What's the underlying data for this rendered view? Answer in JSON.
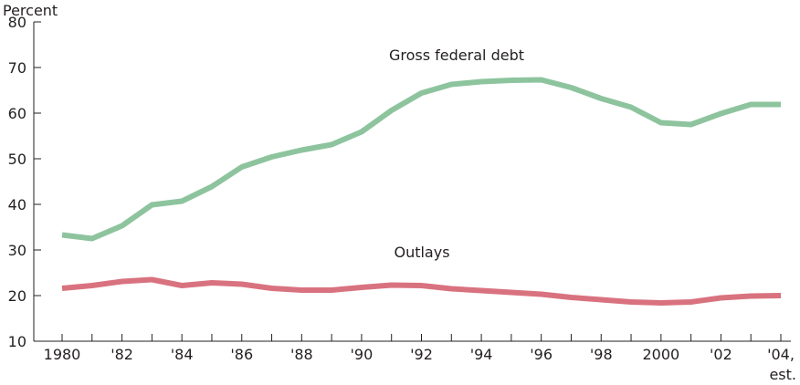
{
  "chart_data": {
    "type": "line",
    "ylabel": "Percent",
    "ylim": [
      10,
      80
    ],
    "yticks": [
      10,
      20,
      30,
      40,
      50,
      60,
      70,
      80
    ],
    "xlim": [
      1980,
      2004
    ],
    "x": [
      1980,
      1981,
      1982,
      1983,
      1984,
      1985,
      1986,
      1987,
      1988,
      1989,
      1990,
      1991,
      1992,
      1993,
      1994,
      1995,
      1996,
      1997,
      1998,
      1999,
      2000,
      2001,
      2002,
      2003,
      2004
    ],
    "xticks": [
      {
        "value": 1980,
        "label": "1980"
      },
      {
        "value": 1982,
        "label": "'82"
      },
      {
        "value": 1984,
        "label": "'84"
      },
      {
        "value": 1986,
        "label": "'86"
      },
      {
        "value": 1988,
        "label": "'88"
      },
      {
        "value": 1990,
        "label": "'90"
      },
      {
        "value": 1992,
        "label": "'92"
      },
      {
        "value": 1994,
        "label": "'94"
      },
      {
        "value": 1996,
        "label": "'96"
      },
      {
        "value": 1998,
        "label": "'98"
      },
      {
        "value": 2000,
        "label": "2000"
      },
      {
        "value": 2002,
        "label": "'02"
      },
      {
        "value": 2004,
        "label": "'04,",
        "sublabel": "est."
      }
    ],
    "series": [
      {
        "name": "Gross federal debt",
        "color": "#8dc49e",
        "values": [
          33.3,
          32.5,
          35.3,
          39.9,
          40.7,
          43.9,
          48.2,
          50.4,
          51.9,
          53.1,
          55.9,
          60.6,
          64.4,
          66.3,
          66.9,
          67.2,
          67.3,
          65.6,
          63.2,
          61.3,
          57.9,
          57.5,
          59.9,
          61.9,
          61.9
        ]
      },
      {
        "name": "Outlays",
        "color": "#d9727f",
        "values": [
          21.6,
          22.2,
          23.1,
          23.5,
          22.2,
          22.8,
          22.5,
          21.6,
          21.2,
          21.2,
          21.8,
          22.3,
          22.2,
          21.5,
          21.1,
          20.7,
          20.3,
          19.6,
          19.1,
          18.6,
          18.4,
          18.6,
          19.5,
          19.9,
          20.0
        ]
      }
    ]
  }
}
